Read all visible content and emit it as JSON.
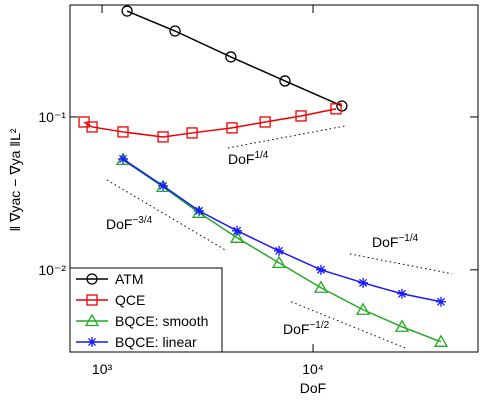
{
  "chart_data": {
    "type": "line",
    "xlabel": "DoF",
    "ylabel": "‖ ∇yac − ∇ya ‖L²",
    "xscale": "log",
    "yscale": "log",
    "xlim": [
      705,
      60500
    ],
    "ylim": [
      0.0029,
      0.54
    ],
    "xticks": [
      {
        "value": 1000,
        "label": "10³"
      },
      {
        "value": 10000,
        "label": "10⁴"
      }
    ],
    "yticks": [
      {
        "value": 0.01,
        "label": "10⁻²"
      },
      {
        "value": 0.1,
        "label": "10⁻¹"
      }
    ],
    "legend": "lower left",
    "series": [
      {
        "name": "ATM",
        "color": "#000000",
        "marker": "circle",
        "x": [
          1314,
          2218,
          4080,
          7360,
          13700
        ],
        "values": [
          0.493,
          0.365,
          0.247,
          0.172,
          0.118
        ]
      },
      {
        "name": "QCE",
        "color": "#ee0000",
        "marker": "square",
        "x": [
          822,
          897,
          1257,
          1946,
          2671,
          4130,
          5930,
          8770,
          12850
        ],
        "values": [
          0.0927,
          0.086,
          0.0798,
          0.074,
          0.0786,
          0.0848,
          0.0927,
          0.1015,
          0.113
        ]
      },
      {
        "name": "BQCE: smooth",
        "color": "#22aa22",
        "marker": "triangle",
        "x": [
          1257,
          1946,
          2884,
          4365,
          6900,
          10900,
          17260,
          26400,
          40400
        ],
        "values": [
          0.0524,
          0.0349,
          0.0236,
          0.0162,
          0.0111,
          0.00763,
          0.00548,
          0.00424,
          0.00338
        ]
      },
      {
        "name": "BQCE: linear",
        "color": "#1a1aff",
        "marker": "star",
        "x": [
          1257,
          1946,
          2884,
          4365,
          6900,
          10900,
          17260,
          26400,
          40400
        ],
        "values": [
          0.0531,
          0.0354,
          0.0243,
          0.018,
          0.0133,
          0.01,
          0.00822,
          0.00697,
          0.00618
        ]
      }
    ],
    "reference_lines": [
      {
        "label": "DoF",
        "exponent": "1/4",
        "x": [
          3950,
          14190
        ],
        "y": [
          0.0627,
          0.0873
        ]
      },
      {
        "label": "DoF",
        "exponent": "−3/4",
        "x": [
          1056,
          3830
        ],
        "y": [
          0.0387,
          0.0135
        ]
      },
      {
        "label": "DoF",
        "exponent": "−1/4",
        "x": [
          14960,
          45600
        ],
        "y": [
          0.0127,
          0.00942
        ]
      },
      {
        "label": "DoF",
        "exponent": "−1/2",
        "x": [
          7870,
          27860
        ],
        "y": [
          0.00618,
          0.00305
        ]
      }
    ]
  }
}
